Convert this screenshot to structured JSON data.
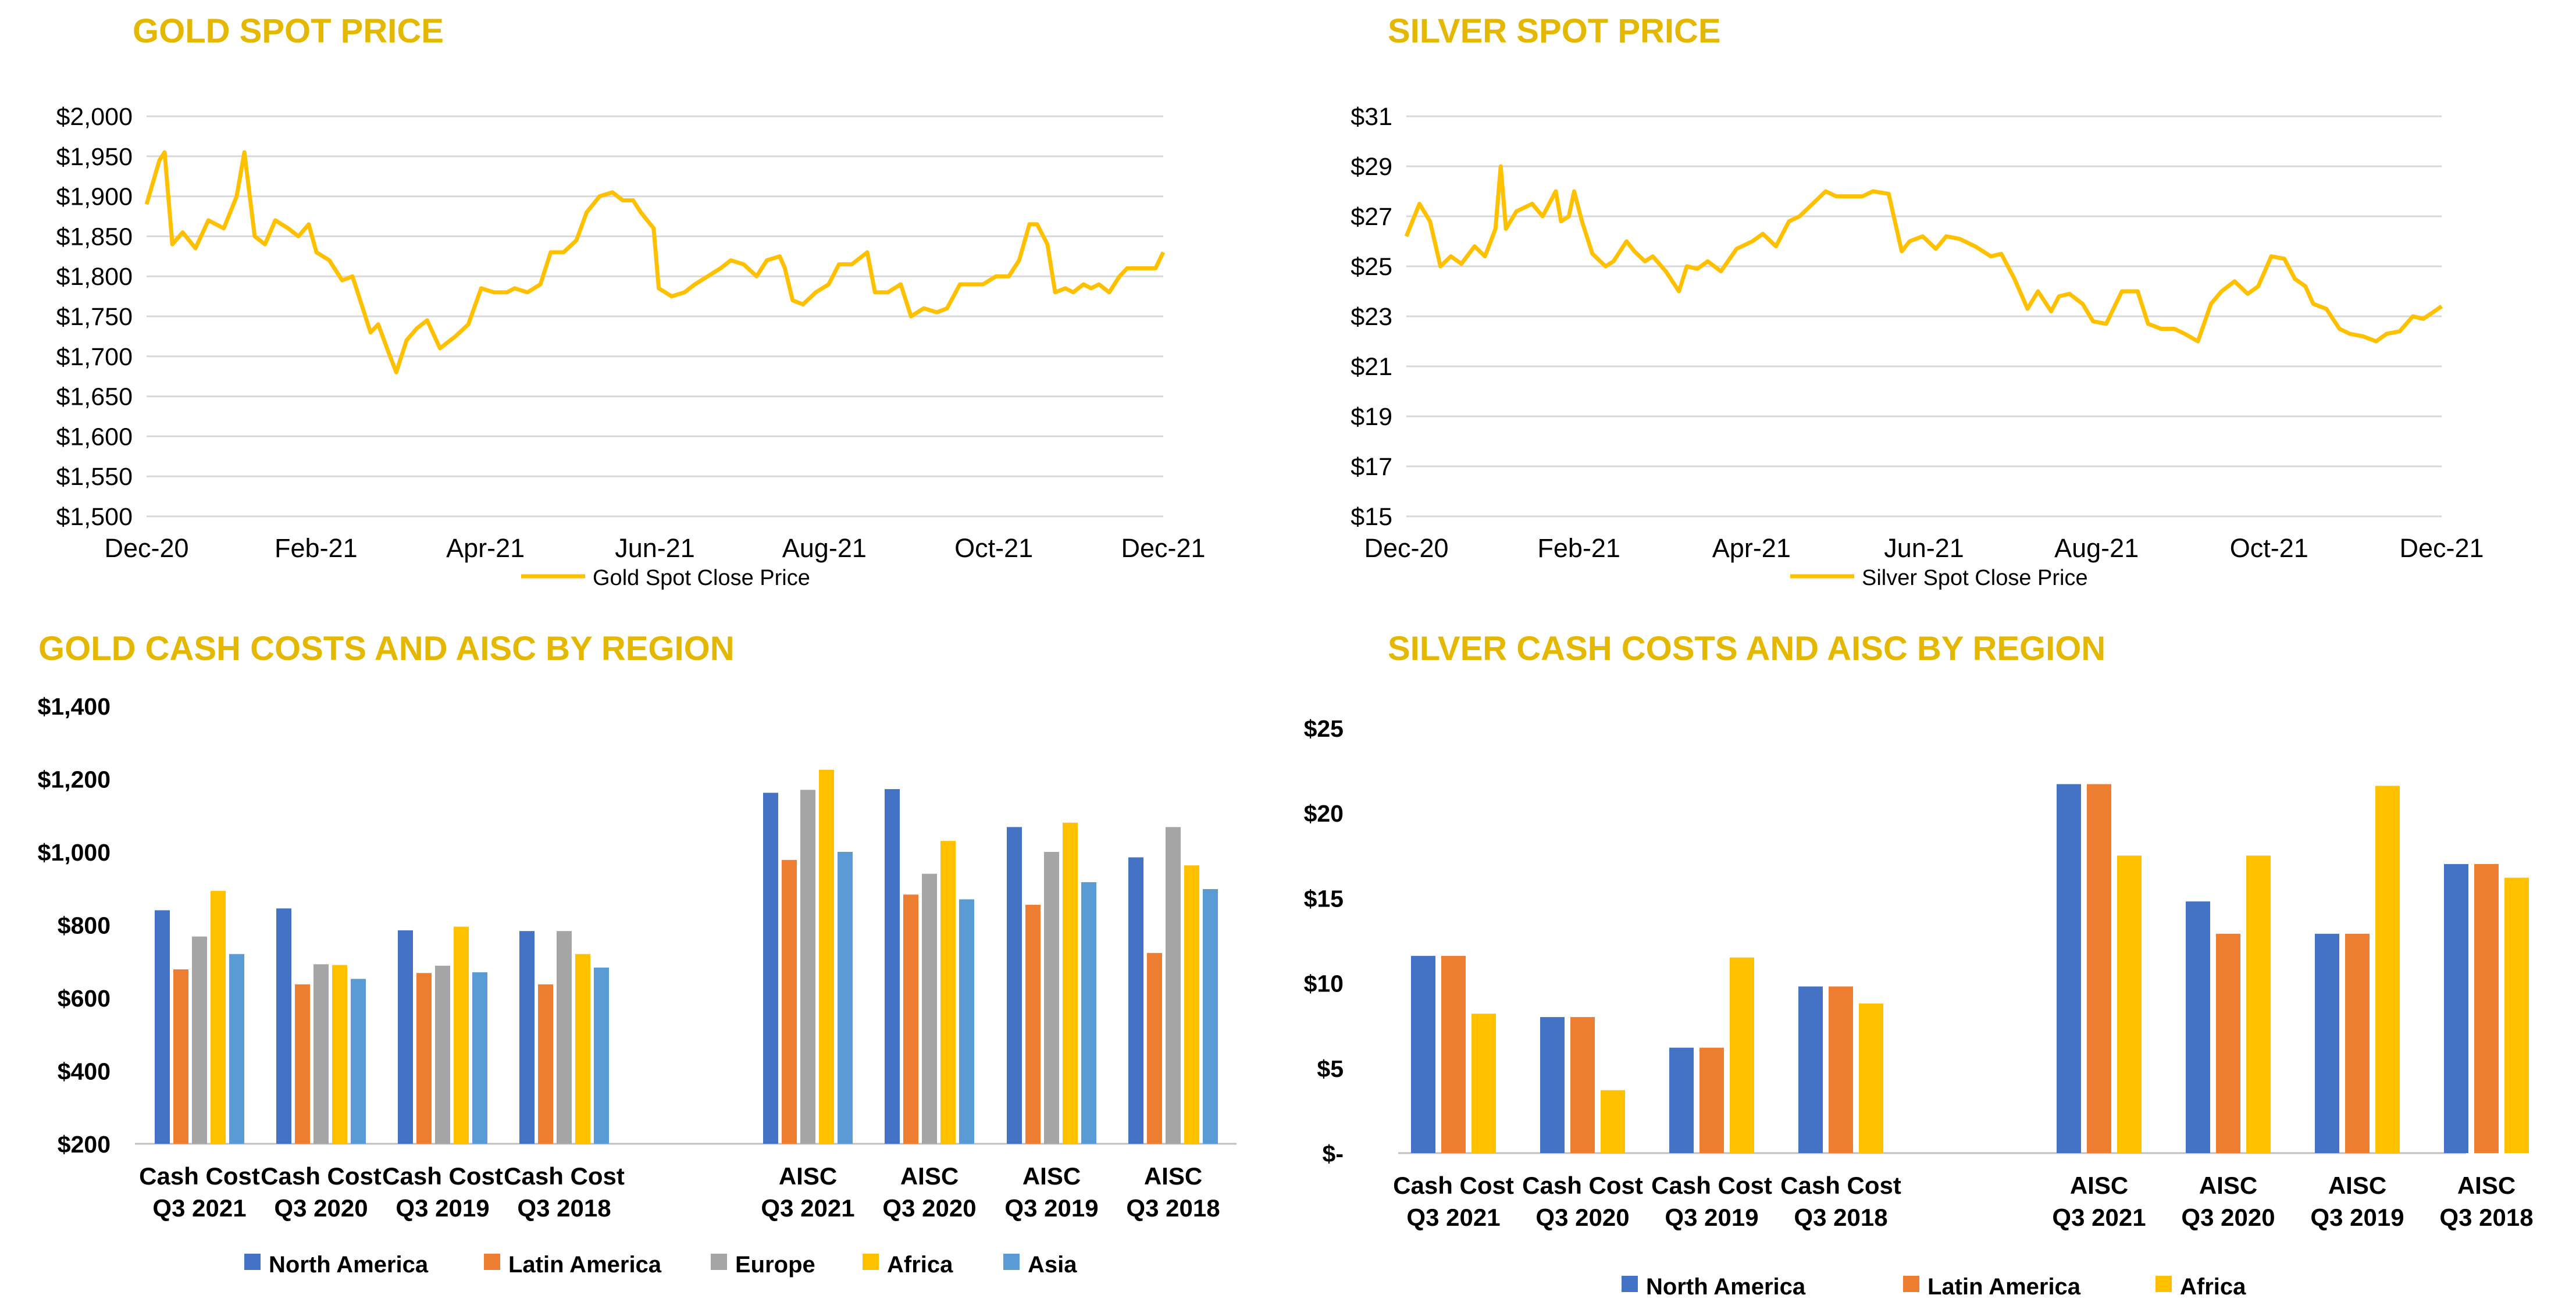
{
  "colors": {
    "title": "#E5B800",
    "gold_line": "#FFC000",
    "north_america": "#4472C4",
    "latin_america": "#ED7D31",
    "europe": "#A5A5A5",
    "africa": "#FFC000",
    "asia": "#5B9BD5"
  },
  "chart_data": [
    {
      "id": "gold-spot",
      "type": "line",
      "title": "GOLD SPOT PRICE",
      "series": [
        {
          "name": "Gold Spot Close Price",
          "x": [
            "2020-12-01",
            "2020-12-06",
            "2020-12-08",
            "2020-12-11",
            "2020-12-15",
            "2020-12-20",
            "2020-12-25",
            "2020-12-31",
            "2021-01-05",
            "2021-01-08",
            "2021-01-12",
            "2021-01-16",
            "2021-01-20",
            "2021-01-25",
            "2021-01-29",
            "2021-02-02",
            "2021-02-05",
            "2021-02-10",
            "2021-02-15",
            "2021-02-19",
            "2021-02-23",
            "2021-02-26",
            "2021-03-01",
            "2021-03-05",
            "2021-03-08",
            "2021-03-12",
            "2021-03-16",
            "2021-03-20",
            "2021-03-25",
            "2021-03-31",
            "2021-04-05",
            "2021-04-10",
            "2021-04-15",
            "2021-04-20",
            "2021-04-23",
            "2021-04-28",
            "2021-05-03",
            "2021-05-07",
            "2021-05-12",
            "2021-05-17",
            "2021-05-21",
            "2021-05-26",
            "2021-05-31",
            "2021-06-04",
            "2021-06-08",
            "2021-06-11",
            "2021-06-16",
            "2021-06-18",
            "2021-06-23",
            "2021-06-28",
            "2021-07-02",
            "2021-07-07",
            "2021-07-12",
            "2021-07-16",
            "2021-07-21",
            "2021-07-26",
            "2021-07-30",
            "2021-08-04",
            "2021-08-06",
            "2021-08-09",
            "2021-08-13",
            "2021-08-18",
            "2021-08-23",
            "2021-08-27",
            "2021-09-01",
            "2021-09-07",
            "2021-09-10",
            "2021-09-15",
            "2021-09-20",
            "2021-09-24",
            "2021-09-29",
            "2021-10-04",
            "2021-10-08",
            "2021-10-13",
            "2021-10-18",
            "2021-10-22",
            "2021-10-27",
            "2021-11-01",
            "2021-11-05",
            "2021-11-09",
            "2021-11-12",
            "2021-11-16",
            "2021-11-19",
            "2021-11-23",
            "2021-11-26",
            "2021-11-30",
            "2021-12-03",
            "2021-12-06",
            "2021-12-10",
            "2021-12-14",
            "2021-12-17",
            "2021-12-22",
            "2021-12-28",
            "2021-12-31"
          ],
          "y": [
            1890,
            1945,
            1955,
            1840,
            1855,
            1835,
            1870,
            1860,
            1900,
            1955,
            1850,
            1840,
            1870,
            1860,
            1850,
            1865,
            1830,
            1820,
            1795,
            1800,
            1760,
            1730,
            1740,
            1705,
            1680,
            1720,
            1735,
            1745,
            1710,
            1725,
            1740,
            1785,
            1780,
            1780,
            1785,
            1780,
            1790,
            1830,
            1830,
            1845,
            1880,
            1900,
            1905,
            1895,
            1895,
            1880,
            1860,
            1785,
            1775,
            1780,
            1790,
            1800,
            1810,
            1820,
            1815,
            1800,
            1820,
            1825,
            1810,
            1770,
            1765,
            1780,
            1790,
            1815,
            1815,
            1830,
            1780,
            1780,
            1790,
            1750,
            1760,
            1755,
            1760,
            1790,
            1790,
            1790,
            1800,
            1800,
            1820,
            1865,
            1865,
            1840,
            1780,
            1785,
            1780,
            1790,
            1785,
            1790,
            1780,
            1800,
            1810,
            1810,
            1810,
            1830
          ]
        }
      ],
      "y_tick_labels": [
        "$2,000",
        "$1,950",
        "$1,900",
        "$1,850",
        "$1,800",
        "$1,750",
        "$1,700",
        "$1,650",
        "$1,600",
        "$1,550",
        "$1,500"
      ],
      "x_tick_labels": [
        "Dec-20",
        "Feb-21",
        "Apr-21",
        "Jun-21",
        "Aug-21",
        "Oct-21",
        "Dec-21"
      ],
      "ylim": [
        1500,
        2000
      ],
      "grid": true,
      "legend": "bottom"
    },
    {
      "id": "silver-spot",
      "type": "line",
      "title": "SILVER SPOT PRICE",
      "series": [
        {
          "name": "Silver Spot Close Price",
          "x": [
            "2020-12-01",
            "2020-12-06",
            "2020-12-10",
            "2020-12-14",
            "2020-12-18",
            "2020-12-22",
            "2020-12-27",
            "2020-12-31",
            "2021-01-04",
            "2021-01-06",
            "2021-01-08",
            "2021-01-12",
            "2021-01-18",
            "2021-01-22",
            "2021-01-27",
            "2021-01-29",
            "2021-02-01",
            "2021-02-03",
            "2021-02-06",
            "2021-02-10",
            "2021-02-15",
            "2021-02-18",
            "2021-02-23",
            "2021-02-26",
            "2021-03-02",
            "2021-03-05",
            "2021-03-10",
            "2021-03-15",
            "2021-03-18",
            "2021-03-22",
            "2021-03-26",
            "2021-03-31",
            "2021-04-06",
            "2021-04-12",
            "2021-04-16",
            "2021-04-21",
            "2021-04-26",
            "2021-04-30",
            "2021-05-05",
            "2021-05-10",
            "2021-05-14",
            "2021-05-19",
            "2021-05-24",
            "2021-05-28",
            "2021-06-03",
            "2021-06-08",
            "2021-06-11",
            "2021-06-16",
            "2021-06-21",
            "2021-06-25",
            "2021-06-30",
            "2021-07-06",
            "2021-07-12",
            "2021-07-16",
            "2021-07-21",
            "2021-07-26",
            "2021-07-30",
            "2021-08-04",
            "2021-08-07",
            "2021-08-11",
            "2021-08-16",
            "2021-08-20",
            "2021-08-25",
            "2021-08-31",
            "2021-09-06",
            "2021-09-10",
            "2021-09-15",
            "2021-09-20",
            "2021-09-24",
            "2021-09-29",
            "2021-10-04",
            "2021-10-08",
            "2021-10-13",
            "2021-10-18",
            "2021-10-22",
            "2021-10-27",
            "2021-11-01",
            "2021-11-05",
            "2021-11-09",
            "2021-11-12",
            "2021-11-17",
            "2021-11-22",
            "2021-11-26",
            "2021-12-01",
            "2021-12-06",
            "2021-12-10",
            "2021-12-15",
            "2021-12-20",
            "2021-12-24",
            "2021-12-31"
          ],
          "y": [
            26.2,
            27.5,
            26.8,
            25.0,
            25.4,
            25.1,
            25.8,
            25.4,
            26.5,
            29.0,
            26.5,
            27.2,
            27.5,
            27.0,
            28.0,
            26.8,
            27.0,
            28.0,
            26.8,
            25.5,
            25.0,
            25.2,
            26.0,
            25.6,
            25.2,
            25.4,
            24.8,
            24.0,
            25.0,
            24.9,
            25.2,
            24.8,
            25.7,
            26.0,
            26.3,
            25.8,
            26.8,
            27.0,
            27.5,
            28.0,
            27.8,
            27.8,
            27.8,
            28.0,
            27.9,
            25.6,
            26.0,
            26.2,
            25.7,
            26.2,
            26.1,
            25.8,
            25.4,
            25.5,
            24.5,
            23.3,
            24.0,
            23.2,
            23.8,
            23.9,
            23.5,
            22.8,
            22.7,
            24.0,
            24.0,
            22.7,
            22.5,
            22.5,
            22.3,
            22.0,
            23.5,
            24.0,
            24.4,
            23.9,
            24.2,
            25.4,
            25.3,
            24.5,
            24.2,
            23.5,
            23.3,
            22.5,
            22.3,
            22.2,
            22.0,
            22.3,
            22.4,
            23.0,
            22.9,
            23.4
          ]
        }
      ],
      "y_tick_labels": [
        "$31",
        "$29",
        "$27",
        "$25",
        "$23",
        "$21",
        "$19",
        "$17",
        "$15"
      ],
      "x_tick_labels": [
        "Dec-20",
        "Feb-21",
        "Apr-21",
        "Jun-21",
        "Aug-21",
        "Oct-21",
        "Dec-21"
      ],
      "ylim": [
        15,
        31
      ],
      "grid": true,
      "legend": "bottom"
    },
    {
      "id": "gold-costs",
      "type": "bar",
      "title": "GOLD CASH COSTS AND AISC BY REGION",
      "categories": [
        [
          "Cash Cost",
          "Q3 2021"
        ],
        [
          "Cash Cost",
          "Q3 2020"
        ],
        [
          "Cash Cost",
          "Q3 2019"
        ],
        [
          "Cash Cost",
          "Q3 2018"
        ],
        [
          "AISC",
          "Q3 2021"
        ],
        [
          "AISC",
          "Q3 2020"
        ],
        [
          "AISC",
          "Q3 2019"
        ],
        [
          "AISC",
          "Q3 2018"
        ]
      ],
      "series": [
        {
          "name": "North America",
          "values": [
            840,
            845,
            785,
            783,
            1162,
            1172,
            1068,
            985
          ]
        },
        {
          "name": "Latin America",
          "values": [
            678,
            637,
            668,
            637,
            978,
            883,
            855,
            723
          ]
        },
        {
          "name": "Europe",
          "values": [
            768,
            692,
            688,
            783,
            1170,
            940,
            1000,
            1068
          ]
        },
        {
          "name": "Africa",
          "values": [
            893,
            690,
            795,
            720,
            1225,
            1030,
            1080,
            963
          ]
        },
        {
          "name": "Asia",
          "values": [
            720,
            652,
            670,
            683,
            1000,
            870,
            917,
            898
          ]
        }
      ],
      "y_tick_labels": [
        "$1,400",
        "$1,200",
        "$1,000",
        "$800",
        "$600",
        "$400",
        "$200"
      ],
      "ylim": [
        200,
        1400
      ],
      "grid": false,
      "legend": "bottom"
    },
    {
      "id": "silver-costs",
      "type": "bar",
      "title": "SILVER CASH COSTS AND AISC BY REGION",
      "categories": [
        [
          "Cash Cost",
          "Q3 2021"
        ],
        [
          "Cash Cost",
          "Q3 2020"
        ],
        [
          "Cash Cost",
          "Q3 2019"
        ],
        [
          "Cash Cost",
          "Q3 2018"
        ],
        [
          "AISC",
          "Q3 2021"
        ],
        [
          "AISC",
          "Q3 2020"
        ],
        [
          "AISC",
          "Q3 2019"
        ],
        [
          "AISC",
          "Q3 2018"
        ]
      ],
      "series": [
        {
          "name": "North America",
          "values": [
            11.6,
            8.0,
            6.2,
            9.8,
            21.7,
            14.8,
            12.9,
            17.0
          ]
        },
        {
          "name": "Latin America",
          "values": [
            11.6,
            8.0,
            6.2,
            9.8,
            21.7,
            12.9,
            12.9,
            17.0
          ]
        },
        {
          "name": "Africa",
          "values": [
            8.2,
            3.7,
            11.5,
            8.8,
            17.5,
            17.5,
            21.6,
            16.2
          ]
        }
      ],
      "y_tick_labels": [
        "$25",
        "$20",
        "$15",
        "$10",
        "$5",
        "$-"
      ],
      "ylim": [
        0,
        25
      ],
      "grid": false,
      "legend": "bottom"
    }
  ]
}
